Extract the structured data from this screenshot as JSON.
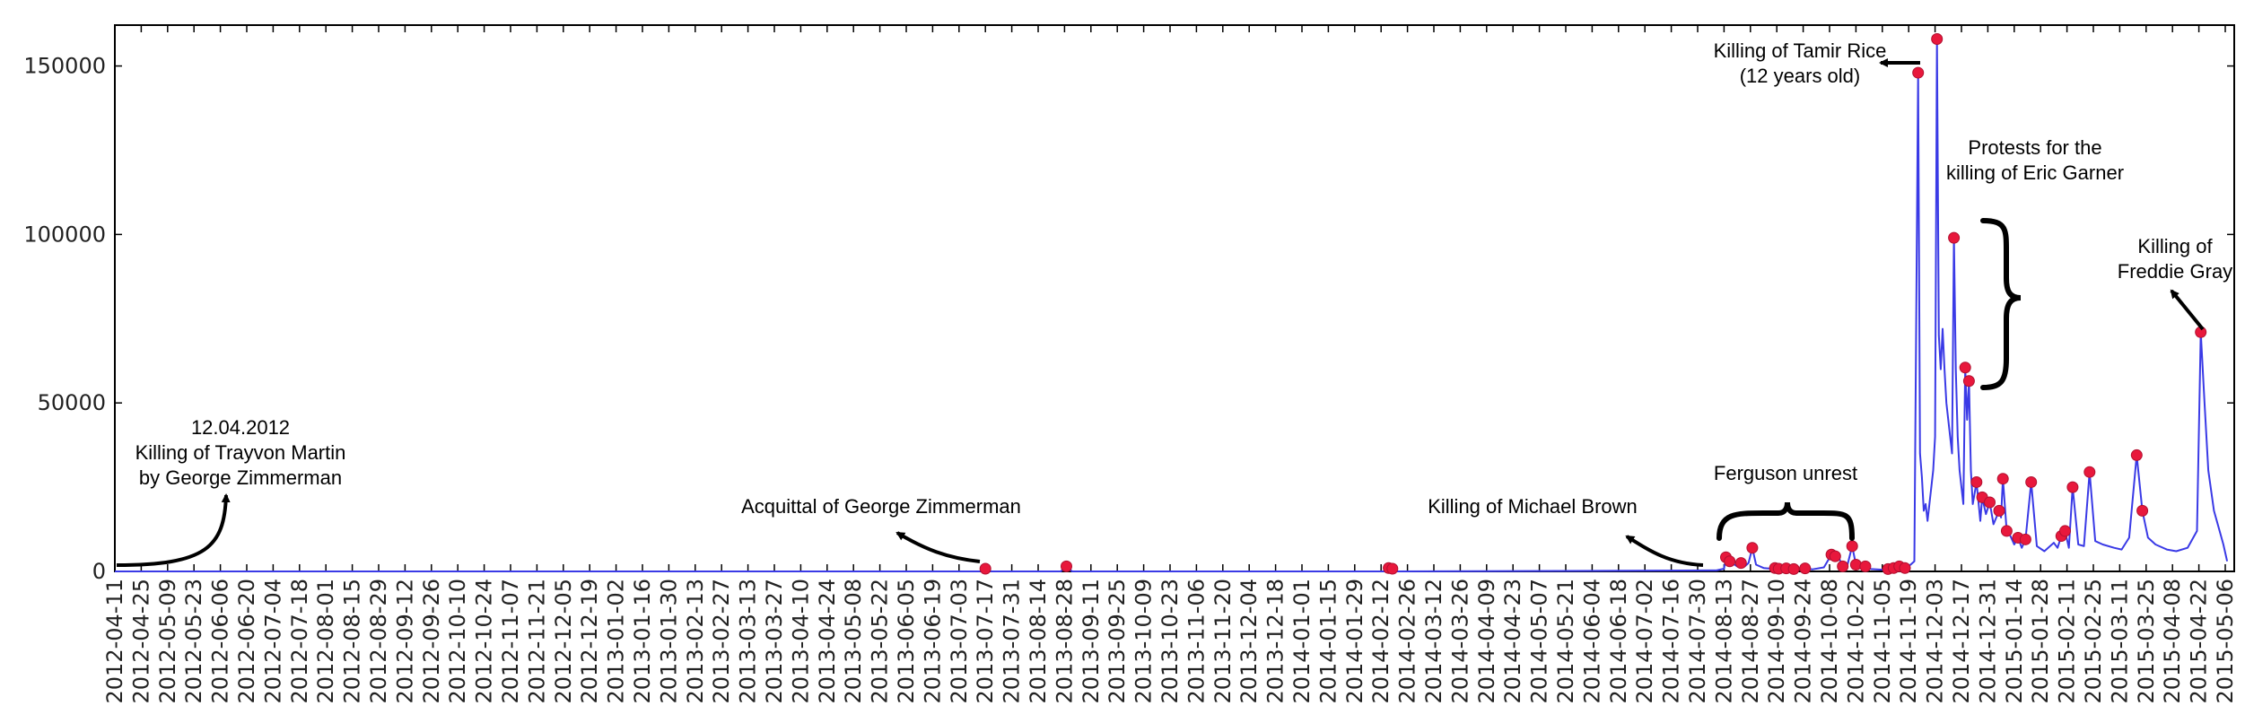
{
  "chart_data": {
    "type": "line",
    "title": "",
    "xlabel": "",
    "ylabel": "",
    "ylim": [
      0,
      160000
    ],
    "yticks": [
      0,
      50000,
      100000,
      150000
    ],
    "ytick_labels": [
      "0",
      "50000",
      "100000",
      "150000"
    ],
    "grid": false,
    "legend": "none",
    "line_color": "#3a3ae6",
    "marker_color": "#e8183c",
    "xticks": [
      "2012-04-11",
      "2012-04-25",
      "2012-05-09",
      "2012-05-23",
      "2012-06-06",
      "2012-06-20",
      "2012-07-04",
      "2012-07-18",
      "2012-08-01",
      "2012-08-15",
      "2012-08-29",
      "2012-09-12",
      "2012-09-26",
      "2012-10-10",
      "2012-10-24",
      "2012-11-07",
      "2012-11-21",
      "2012-12-05",
      "2012-12-19",
      "2013-01-02",
      "2013-01-16",
      "2013-01-30",
      "2013-02-13",
      "2013-02-27",
      "2013-03-13",
      "2013-03-27",
      "2013-04-10",
      "2013-04-24",
      "2013-05-08",
      "2013-05-22",
      "2013-06-05",
      "2013-06-19",
      "2013-07-03",
      "2013-07-17",
      "2013-07-31",
      "2013-08-14",
      "2013-08-28",
      "2013-09-11",
      "2013-09-25",
      "2013-10-09",
      "2013-10-23",
      "2013-11-06",
      "2013-11-20",
      "2013-12-04",
      "2013-12-18",
      "2014-01-01",
      "2014-01-15",
      "2014-01-29",
      "2014-02-12",
      "2014-02-26",
      "2014-03-12",
      "2014-03-26",
      "2014-04-09",
      "2014-04-23",
      "2014-05-07",
      "2014-05-21",
      "2014-06-04",
      "2014-06-18",
      "2014-07-02",
      "2014-07-16",
      "2014-07-30",
      "2014-08-13",
      "2014-08-27",
      "2014-09-10",
      "2014-09-24",
      "2014-10-08",
      "2014-10-22",
      "2014-11-05",
      "2014-11-19",
      "2014-12-03",
      "2014-12-17",
      "2014-12-31",
      "2015-01-14",
      "2015-01-28",
      "2015-02-11",
      "2015-02-25",
      "2015-03-11",
      "2015-03-25",
      "2015-04-08",
      "2015-04-22",
      "2015-05-06"
    ],
    "series": [
      {
        "points": [
          [
            "2012-04-11",
            0
          ],
          [
            "2013-07-14",
            0
          ],
          [
            "2013-07-17",
            800
          ],
          [
            "2013-07-20",
            0
          ],
          [
            "2013-08-26",
            0
          ],
          [
            "2013-08-29",
            1500
          ],
          [
            "2013-09-01",
            0
          ],
          [
            "2014-02-14",
            0
          ],
          [
            "2014-02-16",
            1000
          ],
          [
            "2014-02-18",
            800
          ],
          [
            "2014-02-20",
            0
          ],
          [
            "2014-08-09",
            300
          ],
          [
            "2014-08-13",
            800
          ],
          [
            "2014-08-14",
            4200
          ],
          [
            "2014-08-16",
            3000
          ],
          [
            "2014-08-18",
            2200
          ],
          [
            "2014-08-20",
            1500
          ],
          [
            "2014-08-22",
            2500
          ],
          [
            "2014-08-24",
            1500
          ],
          [
            "2014-08-26",
            2500
          ],
          [
            "2014-08-28",
            7000
          ],
          [
            "2014-08-30",
            2000
          ],
          [
            "2014-09-03",
            1000
          ],
          [
            "2014-09-07",
            800
          ],
          [
            "2014-09-09",
            1000
          ],
          [
            "2014-09-11",
            800
          ],
          [
            "2014-09-13",
            600
          ],
          [
            "2014-09-15",
            900
          ],
          [
            "2014-09-19",
            700
          ],
          [
            "2014-09-23",
            500
          ],
          [
            "2014-09-25",
            900
          ],
          [
            "2014-09-29",
            600
          ],
          [
            "2014-10-05",
            1200
          ],
          [
            "2014-10-09",
            5000
          ],
          [
            "2014-10-11",
            4500
          ],
          [
            "2014-10-13",
            4000
          ],
          [
            "2014-10-15",
            1500
          ],
          [
            "2014-10-17",
            800
          ],
          [
            "2014-10-20",
            7500
          ],
          [
            "2014-10-22",
            2000
          ],
          [
            "2014-10-24",
            1000
          ],
          [
            "2014-10-27",
            1500
          ],
          [
            "2014-10-30",
            700
          ],
          [
            "2014-11-05",
            500
          ],
          [
            "2014-11-08",
            700
          ],
          [
            "2014-11-11",
            1000
          ],
          [
            "2014-11-14",
            1500
          ],
          [
            "2014-11-17",
            1000
          ],
          [
            "2014-11-20",
            2000
          ],
          [
            "2014-11-22",
            3000
          ],
          [
            "2014-11-24",
            148000
          ],
          [
            "2014-11-25",
            35000
          ],
          [
            "2014-11-26",
            28000
          ],
          [
            "2014-11-27",
            18000
          ],
          [
            "2014-11-28",
            20000
          ],
          [
            "2014-11-29",
            15000
          ],
          [
            "2014-11-30",
            20000
          ],
          [
            "2014-12-01",
            25000
          ],
          [
            "2014-12-02",
            30000
          ],
          [
            "2014-12-03",
            40000
          ],
          [
            "2014-12-04",
            158000
          ],
          [
            "2014-12-05",
            70000
          ],
          [
            "2014-12-06",
            60000
          ],
          [
            "2014-12-07",
            72000
          ],
          [
            "2014-12-08",
            60000
          ],
          [
            "2014-12-09",
            50000
          ],
          [
            "2014-12-10",
            45000
          ],
          [
            "2014-12-11",
            40000
          ],
          [
            "2014-12-12",
            35000
          ],
          [
            "2014-12-13",
            99000
          ],
          [
            "2014-12-14",
            60000
          ],
          [
            "2014-12-15",
            40000
          ],
          [
            "2014-12-16",
            30000
          ],
          [
            "2014-12-17",
            25000
          ],
          [
            "2014-12-18",
            20000
          ],
          [
            "2014-12-19",
            60500
          ],
          [
            "2014-12-20",
            45000
          ],
          [
            "2014-12-21",
            56500
          ],
          [
            "2014-12-22",
            30000
          ],
          [
            "2014-12-23",
            20000
          ],
          [
            "2014-12-25",
            26500
          ],
          [
            "2014-12-27",
            15000
          ],
          [
            "2014-12-28",
            22000
          ],
          [
            "2014-12-30",
            17000
          ],
          [
            "2015-01-01",
            20500
          ],
          [
            "2015-01-03",
            14000
          ],
          [
            "2015-01-06",
            18000
          ],
          [
            "2015-01-07",
            16000
          ],
          [
            "2015-01-08",
            27500
          ],
          [
            "2015-01-10",
            12000
          ],
          [
            "2015-01-12",
            10500
          ],
          [
            "2015-01-14",
            8000
          ],
          [
            "2015-01-16",
            10000
          ],
          [
            "2015-01-18",
            7000
          ],
          [
            "2015-01-20",
            9500
          ],
          [
            "2015-01-23",
            26500
          ],
          [
            "2015-01-26",
            7500
          ],
          [
            "2015-01-30",
            6000
          ],
          [
            "2015-02-04",
            8500
          ],
          [
            "2015-02-06",
            7000
          ],
          [
            "2015-02-08",
            10500
          ],
          [
            "2015-02-10",
            12000
          ],
          [
            "2015-02-12",
            7000
          ],
          [
            "2015-02-14",
            25000
          ],
          [
            "2015-02-17",
            8000
          ],
          [
            "2015-02-20",
            7500
          ],
          [
            "2015-02-23",
            29500
          ],
          [
            "2015-02-26",
            9000
          ],
          [
            "2015-03-02",
            8000
          ],
          [
            "2015-03-08",
            7000
          ],
          [
            "2015-03-12",
            6500
          ],
          [
            "2015-03-16",
            10000
          ],
          [
            "2015-03-20",
            34500
          ],
          [
            "2015-03-23",
            18000
          ],
          [
            "2015-03-26",
            10000
          ],
          [
            "2015-03-30",
            8000
          ],
          [
            "2015-04-05",
            6500
          ],
          [
            "2015-04-10",
            6000
          ],
          [
            "2015-04-16",
            7000
          ],
          [
            "2015-04-21",
            12000
          ],
          [
            "2015-04-23",
            71000
          ],
          [
            "2015-04-25",
            50000
          ],
          [
            "2015-04-27",
            30000
          ],
          [
            "2015-04-30",
            18000
          ],
          [
            "2015-05-03",
            12000
          ],
          [
            "2015-05-05",
            8000
          ],
          [
            "2015-05-07",
            3000
          ]
        ]
      }
    ],
    "markers": [
      [
        "2013-07-17",
        800
      ],
      [
        "2013-08-29",
        1500
      ],
      [
        "2014-02-16",
        1000
      ],
      [
        "2014-02-18",
        800
      ],
      [
        "2014-08-14",
        4200
      ],
      [
        "2014-08-16",
        3000
      ],
      [
        "2014-08-22",
        2500
      ],
      [
        "2014-08-28",
        7000
      ],
      [
        "2014-09-09",
        1000
      ],
      [
        "2014-09-11",
        800
      ],
      [
        "2014-09-15",
        900
      ],
      [
        "2014-09-19",
        700
      ],
      [
        "2014-09-25",
        900
      ],
      [
        "2014-10-09",
        5000
      ],
      [
        "2014-10-11",
        4500
      ],
      [
        "2014-10-15",
        1500
      ],
      [
        "2014-10-20",
        7500
      ],
      [
        "2014-10-22",
        2000
      ],
      [
        "2014-10-27",
        1500
      ],
      [
        "2014-11-08",
        700
      ],
      [
        "2014-11-11",
        1000
      ],
      [
        "2014-11-14",
        1500
      ],
      [
        "2014-11-17",
        1000
      ],
      [
        "2014-11-24",
        148000
      ],
      [
        "2014-12-04",
        158000
      ],
      [
        "2014-12-13",
        99000
      ],
      [
        "2014-12-19",
        60500
      ],
      [
        "2014-12-21",
        56500
      ],
      [
        "2014-12-25",
        26500
      ],
      [
        "2014-12-28",
        22000
      ],
      [
        "2015-01-01",
        20500
      ],
      [
        "2015-01-06",
        18000
      ],
      [
        "2015-01-08",
        27500
      ],
      [
        "2015-01-10",
        12000
      ],
      [
        "2015-01-16",
        10000
      ],
      [
        "2015-01-20",
        9500
      ],
      [
        "2015-01-23",
        26500
      ],
      [
        "2015-02-08",
        10500
      ],
      [
        "2015-02-10",
        12000
      ],
      [
        "2015-02-14",
        25000
      ],
      [
        "2015-02-23",
        29500
      ],
      [
        "2015-03-20",
        34500
      ],
      [
        "2015-03-23",
        18000
      ],
      [
        "2015-04-23",
        71000
      ]
    ],
    "annotations": [
      {
        "id": "trayvon",
        "lines": [
          "12.04.2012",
          "Killing of Trayvon Martin",
          "by George Zimmerman"
        ]
      },
      {
        "id": "acquittal",
        "lines": [
          "Acquittal of George Zimmerman"
        ]
      },
      {
        "id": "brown",
        "lines": [
          "Killing of Michael Brown"
        ]
      },
      {
        "id": "ferguson",
        "lines": [
          "Ferguson unrest"
        ]
      },
      {
        "id": "rice",
        "lines": [
          "Killing of Tamir Rice",
          "(12 years old)"
        ]
      },
      {
        "id": "garner",
        "lines": [
          "Protests for the",
          "killing of Eric Garner"
        ]
      },
      {
        "id": "gray",
        "lines": [
          "Killing of",
          "Freddie Gray"
        ]
      }
    ]
  }
}
